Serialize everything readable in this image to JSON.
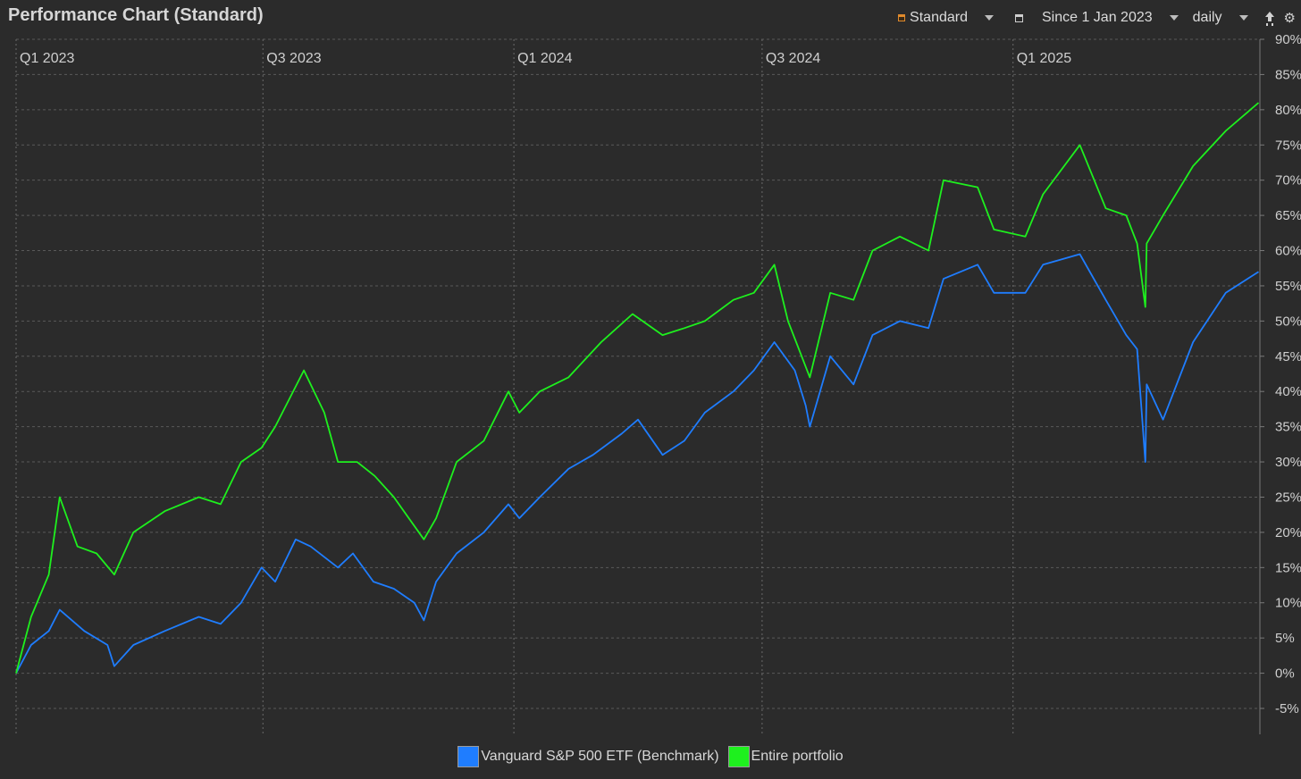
{
  "header": {
    "title": "Performance Chart (Standard)"
  },
  "toolbar": {
    "view_label": "Standard",
    "period_label": "Since 1 Jan 2023",
    "interval_label": "daily",
    "icons": {
      "view": "chart-standard-icon",
      "period": "calendar-icon",
      "export": "export-icon",
      "settings": "gear-icon"
    }
  },
  "colors": {
    "background": "#2b2b2b",
    "benchmark": "#1f7dff",
    "portfolio": "#1ef01e",
    "grid": "#5a5a5a"
  },
  "chart_data": {
    "type": "line",
    "title": "",
    "x_ticks": [
      "Q1 2023",
      "Q3 2023",
      "Q1 2024",
      "Q3 2024",
      "Q1 2025"
    ],
    "x_range": [
      "2023-01-01",
      "2025-07-01"
    ],
    "ylim": [
      -5,
      90
    ],
    "y_ticks": [
      "-5%",
      "0%",
      "5%",
      "10%",
      "15%",
      "20%",
      "25%",
      "30%",
      "35%",
      "40%",
      "45%",
      "50%",
      "55%",
      "60%",
      "65%",
      "70%",
      "75%",
      "80%",
      "85%",
      "90%"
    ],
    "grid": true,
    "legend_position": "bottom-center",
    "series": [
      {
        "name": "Vanguard S&P 500 ETF (Benchmark)",
        "color": "#1f7dff",
        "points": [
          [
            "2023-01-01",
            0
          ],
          [
            "2023-01-12",
            4
          ],
          [
            "2023-01-25",
            6
          ],
          [
            "2023-02-02",
            9
          ],
          [
            "2023-02-20",
            6
          ],
          [
            "2023-03-09",
            4
          ],
          [
            "2023-03-14",
            1
          ],
          [
            "2023-03-28",
            4
          ],
          [
            "2023-04-20",
            6
          ],
          [
            "2023-05-15",
            8
          ],
          [
            "2023-05-31",
            7
          ],
          [
            "2023-06-15",
            10
          ],
          [
            "2023-06-30",
            15
          ],
          [
            "2023-07-10",
            13
          ],
          [
            "2023-07-25",
            19
          ],
          [
            "2023-08-05",
            18
          ],
          [
            "2023-08-25",
            15
          ],
          [
            "2023-09-05",
            17
          ],
          [
            "2023-09-20",
            13
          ],
          [
            "2023-10-05",
            12
          ],
          [
            "2023-10-20",
            10
          ],
          [
            "2023-10-27",
            7.5
          ],
          [
            "2023-11-05",
            13
          ],
          [
            "2023-11-20",
            17
          ],
          [
            "2023-12-10",
            20
          ],
          [
            "2023-12-28",
            24
          ],
          [
            "2024-01-05",
            22
          ],
          [
            "2024-01-20",
            25
          ],
          [
            "2024-02-10",
            29
          ],
          [
            "2024-02-28",
            31
          ],
          [
            "2024-03-20",
            34
          ],
          [
            "2024-04-01",
            36
          ],
          [
            "2024-04-19",
            31
          ],
          [
            "2024-05-05",
            33
          ],
          [
            "2024-05-20",
            37
          ],
          [
            "2024-06-10",
            40
          ],
          [
            "2024-06-25",
            43
          ],
          [
            "2024-07-10",
            47
          ],
          [
            "2024-07-25",
            43
          ],
          [
            "2024-08-02",
            38
          ],
          [
            "2024-08-05",
            35
          ],
          [
            "2024-08-20",
            45
          ],
          [
            "2024-09-06",
            41
          ],
          [
            "2024-09-20",
            48
          ],
          [
            "2024-10-10",
            50
          ],
          [
            "2024-10-31",
            49
          ],
          [
            "2024-11-11",
            56
          ],
          [
            "2024-12-06",
            58
          ],
          [
            "2024-12-18",
            54
          ],
          [
            "2025-01-10",
            54
          ],
          [
            "2025-01-23",
            58
          ],
          [
            "2025-02-19",
            59.5
          ],
          [
            "2025-03-10",
            53
          ],
          [
            "2025-03-25",
            48
          ],
          [
            "2025-04-02",
            46
          ],
          [
            "2025-04-08",
            30
          ],
          [
            "2025-04-09",
            41
          ],
          [
            "2025-04-21",
            36
          ],
          [
            "2025-05-13",
            47
          ],
          [
            "2025-06-06",
            54
          ],
          [
            "2025-06-30",
            57
          ]
        ]
      },
      {
        "name": "Entire portfolio",
        "color": "#1ef01e",
        "points": [
          [
            "2023-01-01",
            0
          ],
          [
            "2023-01-12",
            8
          ],
          [
            "2023-01-25",
            14
          ],
          [
            "2023-02-02",
            25
          ],
          [
            "2023-02-15",
            18
          ],
          [
            "2023-03-01",
            17
          ],
          [
            "2023-03-14",
            14
          ],
          [
            "2023-03-28",
            20
          ],
          [
            "2023-04-20",
            23
          ],
          [
            "2023-05-15",
            25
          ],
          [
            "2023-05-31",
            24
          ],
          [
            "2023-06-15",
            30
          ],
          [
            "2023-06-30",
            32
          ],
          [
            "2023-07-10",
            35
          ],
          [
            "2023-07-31",
            43
          ],
          [
            "2023-08-15",
            37
          ],
          [
            "2023-08-25",
            30
          ],
          [
            "2023-09-08",
            30
          ],
          [
            "2023-09-21",
            28
          ],
          [
            "2023-10-05",
            25
          ],
          [
            "2023-10-27",
            19
          ],
          [
            "2023-11-05",
            22
          ],
          [
            "2023-11-20",
            30
          ],
          [
            "2023-12-10",
            33
          ],
          [
            "2023-12-28",
            40
          ],
          [
            "2024-01-05",
            37
          ],
          [
            "2024-01-20",
            40
          ],
          [
            "2024-02-10",
            42
          ],
          [
            "2024-03-05",
            47
          ],
          [
            "2024-03-28",
            51
          ],
          [
            "2024-04-19",
            48
          ],
          [
            "2024-05-05",
            49
          ],
          [
            "2024-05-20",
            50
          ],
          [
            "2024-06-10",
            53
          ],
          [
            "2024-06-25",
            54
          ],
          [
            "2024-07-10",
            58
          ],
          [
            "2024-07-20",
            50
          ],
          [
            "2024-08-05",
            42
          ],
          [
            "2024-08-20",
            54
          ],
          [
            "2024-09-06",
            53
          ],
          [
            "2024-09-20",
            60
          ],
          [
            "2024-10-10",
            62
          ],
          [
            "2024-10-31",
            60
          ],
          [
            "2024-11-11",
            70
          ],
          [
            "2024-12-06",
            69
          ],
          [
            "2024-12-18",
            63
          ],
          [
            "2025-01-10",
            62
          ],
          [
            "2025-01-23",
            68
          ],
          [
            "2025-02-19",
            75
          ],
          [
            "2025-03-10",
            66
          ],
          [
            "2025-03-25",
            65
          ],
          [
            "2025-04-02",
            61
          ],
          [
            "2025-04-08",
            52
          ],
          [
            "2025-04-09",
            61
          ],
          [
            "2025-04-21",
            65
          ],
          [
            "2025-05-13",
            72
          ],
          [
            "2025-06-06",
            77
          ],
          [
            "2025-06-30",
            81
          ]
        ]
      }
    ]
  },
  "legend": {
    "benchmark_label": "Vanguard S&P 500 ETF (Benchmark)",
    "portfolio_label": "Entire portfolio"
  }
}
